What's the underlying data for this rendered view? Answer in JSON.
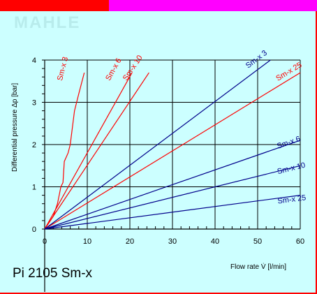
{
  "logo": {
    "text": "MAHLE",
    "color": "#b8ecec"
  },
  "colors": {
    "background_outer": "#ff0000",
    "top_accent": "#ff00ff",
    "panel": "#ccffff",
    "grid": "#000000",
    "red_series": "#ff0000",
    "blue_series": "#00008b"
  },
  "chart_data": {
    "type": "line",
    "title": "Pi 2105 Sm-x",
    "xlabel": "Flow rate V̇ [l/min]",
    "ylabel": "Differential pressure Δp [bar]",
    "xlim": [
      0,
      60
    ],
    "ylim": [
      0,
      4
    ],
    "x_ticks": [
      0,
      10,
      20,
      30,
      40,
      50,
      60
    ],
    "y_ticks": [
      0,
      1,
      2,
      3,
      4
    ],
    "grid": true,
    "series": [
      {
        "name": "Sm-x 3",
        "group": "red",
        "points": [
          [
            0,
            0
          ],
          [
            2,
            0.3
          ],
          [
            3,
            0.6
          ],
          [
            3.8,
            1.0
          ],
          [
            4.3,
            1.1
          ],
          [
            4.6,
            1.6
          ],
          [
            5.5,
            1.8
          ],
          [
            6,
            2.0
          ],
          [
            7,
            2.8
          ],
          [
            8,
            3.2
          ],
          [
            9.3,
            3.7
          ]
        ]
      },
      {
        "name": "Sm-x 6",
        "group": "red",
        "points": [
          [
            0,
            0
          ],
          [
            20.5,
            3.7
          ]
        ]
      },
      {
        "name": "Sm-x 10",
        "group": "red",
        "points": [
          [
            0,
            0
          ],
          [
            24.5,
            3.7
          ]
        ]
      },
      {
        "name": "Sm-x 25",
        "group": "red",
        "points": [
          [
            0,
            0
          ],
          [
            60,
            3.7
          ]
        ]
      },
      {
        "name": "Sm-x 3",
        "group": "blue",
        "points": [
          [
            0,
            0
          ],
          [
            53,
            4.0
          ]
        ]
      },
      {
        "name": "Sm-x 6",
        "group": "blue",
        "points": [
          [
            0,
            0
          ],
          [
            60,
            2.1
          ]
        ]
      },
      {
        "name": "Sm-x 10",
        "group": "blue",
        "points": [
          [
            0,
            0
          ],
          [
            60,
            1.5
          ]
        ]
      },
      {
        "name": "Sm-x 25",
        "group": "blue",
        "points": [
          [
            0,
            0
          ],
          [
            60,
            0.8
          ]
        ]
      }
    ]
  }
}
